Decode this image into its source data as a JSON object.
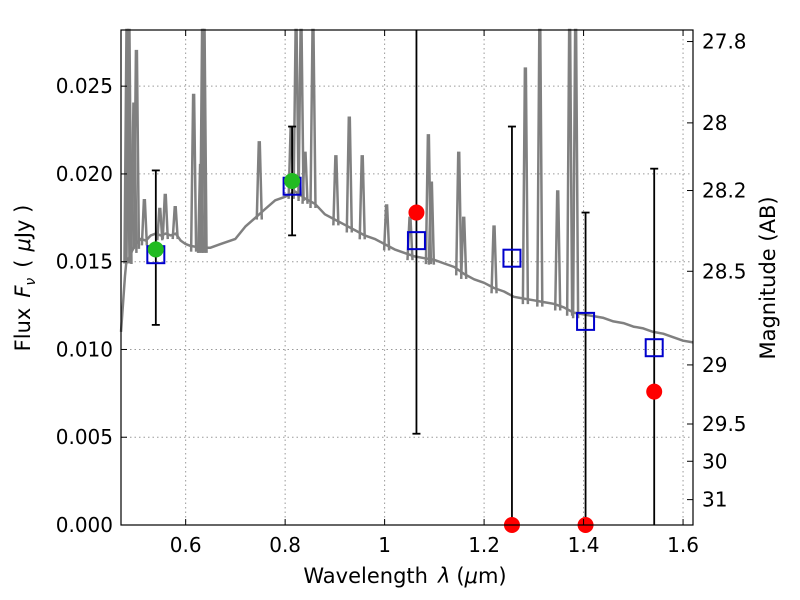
{
  "chart_data": {
    "type": "scatter",
    "xlabel": "Wavelength",
    "xlabel_symbol": "λ",
    "xlabel_unit_open": "(",
    "xlabel_unit_mu": "μ",
    "xlabel_unit_rest": "m)",
    "ylabel": "Flux",
    "ylabel_symbol": "F",
    "ylabel_sub": "ν",
    "ylabel_unit_open": "(",
    "ylabel_unit_mu": "μ",
    "ylabel_unit_rest": "Jy )",
    "y2label": "Magnitude (AB)",
    "xlim": [
      0.47,
      1.62
    ],
    "ylim": [
      0.0,
      0.0282
    ],
    "grid": true,
    "x_ticks": [
      {
        "value": 0.6,
        "label": "0.6"
      },
      {
        "value": 0.8,
        "label": "0.8"
      },
      {
        "value": 1.0,
        "label": "1"
      },
      {
        "value": 1.2,
        "label": "1.2"
      },
      {
        "value": 1.4,
        "label": "1.4"
      },
      {
        "value": 1.6,
        "label": "1.6"
      }
    ],
    "y_ticks": [
      {
        "value": 0.0,
        "label": "0.000"
      },
      {
        "value": 0.005,
        "label": "0.005"
      },
      {
        "value": 0.01,
        "label": "0.010"
      },
      {
        "value": 0.015,
        "label": "0.015"
      },
      {
        "value": 0.02,
        "label": "0.020"
      },
      {
        "value": 0.025,
        "label": "0.025"
      }
    ],
    "y2_ticks": [
      {
        "value": 27.8,
        "label": "27.8"
      },
      {
        "value": 28.0,
        "label": "28"
      },
      {
        "value": 28.2,
        "label": "28.2"
      },
      {
        "value": 28.5,
        "label": "28.5"
      },
      {
        "value": 29.0,
        "label": "29"
      },
      {
        "value": 29.5,
        "label": "29.5"
      },
      {
        "value": 30.0,
        "label": "30"
      },
      {
        "value": 31.0,
        "label": "31"
      }
    ],
    "series": [
      {
        "name": "model-spectrum",
        "style": "line",
        "color": "#808080",
        "x": [
          0.47,
          0.475,
          0.478,
          0.48,
          0.482,
          0.484,
          0.49,
          0.5,
          0.51,
          0.52,
          0.53,
          0.54,
          0.55,
          0.56,
          0.57,
          0.58,
          0.59,
          0.6,
          0.61,
          0.63,
          0.65,
          0.67,
          0.7,
          0.72,
          0.74,
          0.76,
          0.78,
          0.8,
          0.82,
          0.84,
          0.86,
          0.88,
          0.9,
          0.92,
          0.94,
          0.96,
          0.98,
          1.0,
          1.02,
          1.04,
          1.06,
          1.08,
          1.1,
          1.12,
          1.14,
          1.16,
          1.18,
          1.2,
          1.22,
          1.24,
          1.26,
          1.28,
          1.3,
          1.32,
          1.34,
          1.36,
          1.38,
          1.4,
          1.42,
          1.44,
          1.46,
          1.48,
          1.5,
          1.52,
          1.54,
          1.56,
          1.58,
          1.6,
          1.62
        ],
        "y": [
          0.011,
          0.013,
          0.0142,
          0.0148,
          0.0152,
          0.015,
          0.0155,
          0.016,
          0.0163,
          0.0162,
          0.0165,
          0.0166,
          0.0165,
          0.0166,
          0.0165,
          0.0166,
          0.0162,
          0.016,
          0.0159,
          0.0158,
          0.0158,
          0.016,
          0.0163,
          0.017,
          0.0175,
          0.018,
          0.0185,
          0.0187,
          0.019,
          0.0186,
          0.0183,
          0.0177,
          0.0174,
          0.0171,
          0.0168,
          0.0165,
          0.0163,
          0.016,
          0.0157,
          0.0155,
          0.0153,
          0.0152,
          0.0151,
          0.0149,
          0.0147,
          0.0143,
          0.014,
          0.0138,
          0.0135,
          0.0133,
          0.013,
          0.0129,
          0.0128,
          0.0127,
          0.0126,
          0.0124,
          0.0121,
          0.012,
          0.0119,
          0.0118,
          0.0116,
          0.0115,
          0.0113,
          0.0112,
          0.011,
          0.0109,
          0.0107,
          0.0105,
          0.0104
        ]
      },
      {
        "name": "emission-lines",
        "style": "spikes",
        "color": "#808080",
        "lines": [
          {
            "x": 0.482,
            "y": 0.0282
          },
          {
            "x": 0.486,
            "y": 0.0282
          },
          {
            "x": 0.496,
            "y": 0.024
          },
          {
            "x": 0.501,
            "y": 0.027
          },
          {
            "x": 0.517,
            "y": 0.0185
          },
          {
            "x": 0.548,
            "y": 0.018
          },
          {
            "x": 0.559,
            "y": 0.0188
          },
          {
            "x": 0.579,
            "y": 0.0181
          },
          {
            "x": 0.616,
            "y": 0.0245
          },
          {
            "x": 0.63,
            "y": 0.0205
          },
          {
            "x": 0.634,
            "y": 0.0282
          },
          {
            "x": 0.637,
            "y": 0.0282
          },
          {
            "x": 0.748,
            "y": 0.0218
          },
          {
            "x": 0.812,
            "y": 0.0226
          },
          {
            "x": 0.822,
            "y": 0.0282
          },
          {
            "x": 0.832,
            "y": 0.0282
          },
          {
            "x": 0.84,
            "y": 0.0212
          },
          {
            "x": 0.856,
            "y": 0.0282
          },
          {
            "x": 0.902,
            "y": 0.021
          },
          {
            "x": 0.929,
            "y": 0.0232
          },
          {
            "x": 0.955,
            "y": 0.021
          },
          {
            "x": 1.004,
            "y": 0.0182
          },
          {
            "x": 1.051,
            "y": 0.0175
          },
          {
            "x": 1.088,
            "y": 0.0222
          },
          {
            "x": 1.094,
            "y": 0.0195
          },
          {
            "x": 1.149,
            "y": 0.0212
          },
          {
            "x": 1.159,
            "y": 0.0175
          },
          {
            "x": 1.22,
            "y": 0.017
          },
          {
            "x": 1.283,
            "y": 0.026
          },
          {
            "x": 1.312,
            "y": 0.0282
          },
          {
            "x": 1.348,
            "y": 0.019
          },
          {
            "x": 1.372,
            "y": 0.0282
          },
          {
            "x": 1.384,
            "y": 0.0282
          }
        ]
      },
      {
        "name": "model-photometry",
        "style": "open-square",
        "color": "#0000cc",
        "x": [
          0.54,
          0.814,
          1.064,
          1.256,
          1.404,
          1.542
        ],
        "y": [
          0.0154,
          0.0193,
          0.0162,
          0.0152,
          0.0116,
          0.0101
        ]
      },
      {
        "name": "observed-detections",
        "style": "filled-circle",
        "color": "#22bb22",
        "x": [
          0.54,
          0.814
        ],
        "y": [
          0.0157,
          0.0196
        ]
      },
      {
        "name": "observed-nondetections",
        "style": "filled-circle",
        "color": "#ff0000",
        "x": [
          1.064,
          1.256,
          1.404,
          1.542
        ],
        "y": [
          0.0178,
          0.0,
          0.0,
          0.0076
        ]
      },
      {
        "name": "error-bars",
        "style": "errorbar",
        "color": "#000000",
        "x": [
          0.54,
          0.814,
          1.064,
          1.256,
          1.404,
          1.542
        ],
        "ylow": [
          0.0114,
          0.0165,
          0.0052,
          0.0,
          0.0,
          0.0
        ],
        "yhigh": [
          0.0202,
          0.0227,
          0.0282,
          0.0227,
          0.0178,
          0.0203
        ]
      }
    ]
  }
}
